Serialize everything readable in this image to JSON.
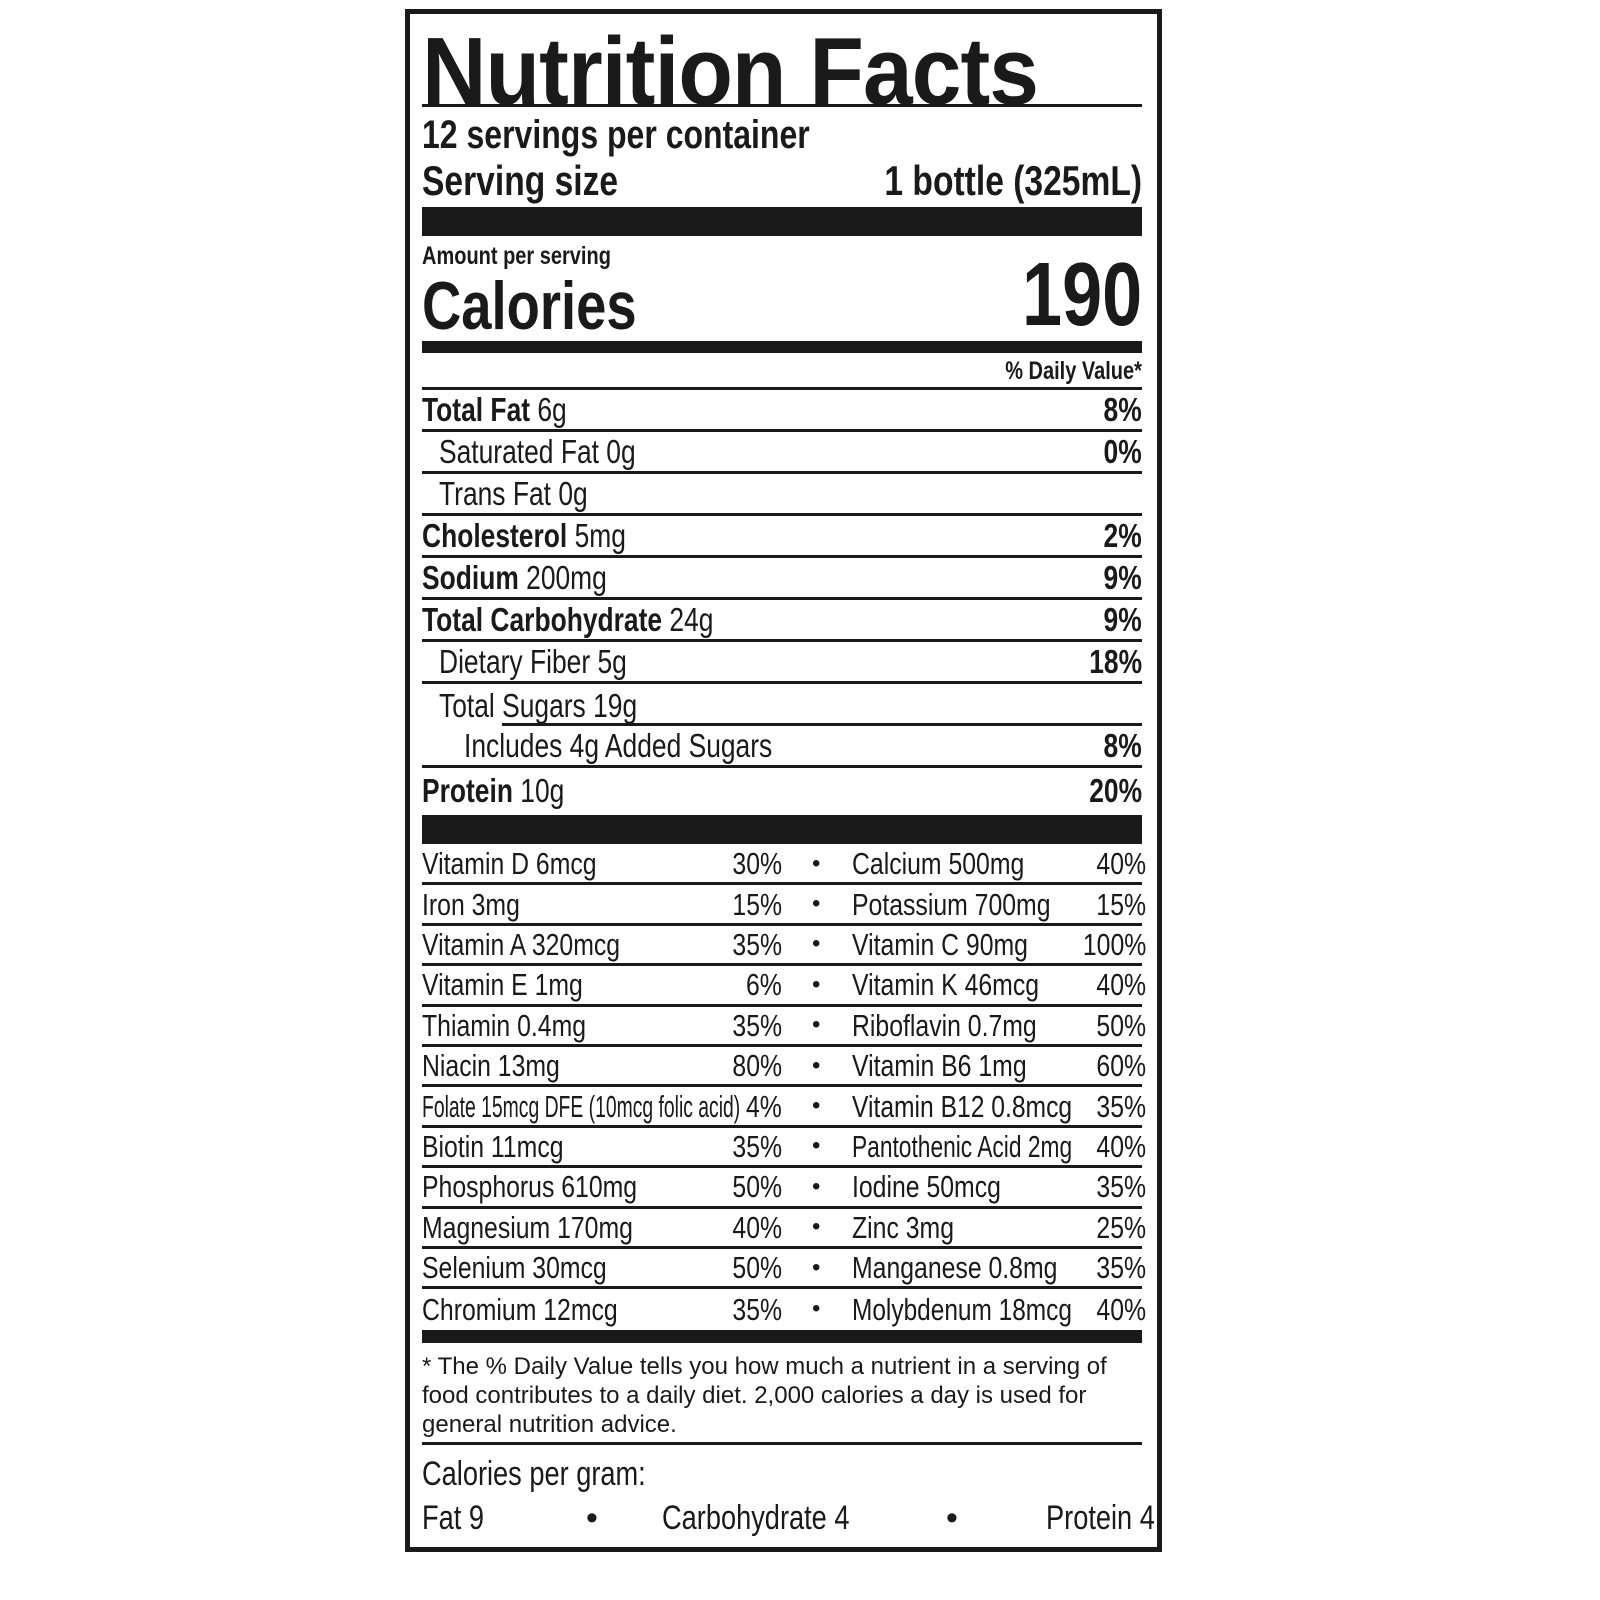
{
  "title": "Nutrition Facts",
  "servings_per_container": "12 servings per container",
  "serving_size_label": "Serving size",
  "serving_size_value": "1 bottle (325mL)",
  "amount_per_serving": "Amount per serving",
  "calories_label": "Calories",
  "calories_value": "190",
  "daily_value_header": "% Daily Value*",
  "nutrients": [
    {
      "name": "Total Fat",
      "amount": "6g",
      "dv": "8%",
      "bold": true,
      "indent": 0
    },
    {
      "name": "Saturated Fat",
      "amount": "0g",
      "dv": "0%",
      "bold": false,
      "indent": 1
    },
    {
      "name": "Trans Fat",
      "amount": "0g",
      "dv": "",
      "bold": false,
      "indent": 1
    },
    {
      "name": "Cholesterol",
      "amount": "5mg",
      "dv": "2%",
      "bold": true,
      "indent": 0
    },
    {
      "name": "Sodium",
      "amount": "200mg",
      "dv": "9%",
      "bold": true,
      "indent": 0
    },
    {
      "name": "Total Carbohydrate",
      "amount": "24g",
      "dv": "9%",
      "bold": true,
      "indent": 0
    },
    {
      "name": "Dietary Fiber",
      "amount": "5g",
      "dv": "18%",
      "bold": false,
      "indent": 1
    },
    {
      "name": "Total Sugars",
      "amount": "19g",
      "dv": "",
      "bold": false,
      "indent": 1
    },
    {
      "name": "Includes 4g Added Sugars",
      "amount": "",
      "dv": "8%",
      "bold": false,
      "indent": 2
    },
    {
      "name": "Protein",
      "amount": "10g",
      "dv": "20%",
      "bold": true,
      "indent": 0
    }
  ],
  "vitamins": [
    {
      "left": "Vitamin D 6mcg",
      "left_dv": "30%",
      "right": "Calcium 500mg",
      "right_dv": "40%"
    },
    {
      "left": "Iron 3mg",
      "left_dv": "15%",
      "right": "Potassium 700mg",
      "right_dv": "15%"
    },
    {
      "left": "Vitamin A 320mcg",
      "left_dv": "35%",
      "right": "Vitamin C 90mg",
      "right_dv": "100%"
    },
    {
      "left": "Vitamin E 1mg",
      "left_dv": "6%",
      "right": "Vitamin K 46mcg",
      "right_dv": "40%"
    },
    {
      "left": "Thiamin  0.4mg",
      "left_dv": "35%",
      "right": "Riboflavin 0.7mg",
      "right_dv": "50%"
    },
    {
      "left": "Niacin 13mg",
      "left_dv": "80%",
      "right": "Vitamin B6 1mg",
      "right_dv": "60%"
    },
    {
      "left": "Folate 15mcg DFE (10mcg folic acid)",
      "left_dv": "4%",
      "right": "Vitamin B12 0.8mcg",
      "right_dv": "35%"
    },
    {
      "left": "Biotin 11mcg",
      "left_dv": "35%",
      "right": "Pantothenic Acid  2mg",
      "right_dv": "40%"
    },
    {
      "left": "Phosphorus 610mg",
      "left_dv": "50%",
      "right": "Iodine 50mcg",
      "right_dv": "35%"
    },
    {
      "left": "Magnesium 170mg",
      "left_dv": "40%",
      "right": "Zinc 3mg",
      "right_dv": "25%"
    },
    {
      "left": "Selenium 30mcg",
      "left_dv": "50%",
      "right": "Manganese 0.8mg",
      "right_dv": "35%"
    },
    {
      "left": "Chromium 12mcg",
      "left_dv": "35%",
      "right": "Molybdenum 18mcg",
      "right_dv": "40%"
    }
  ],
  "separator_bullet": "•",
  "footnote": "* The % Daily Value tells you how much a nutrient in a serving of food contributes to a daily diet. 2,000 calories a day is used for general nutrition advice.",
  "calories_per_gram": {
    "label": "Calories per gram:",
    "fat": "Fat 9",
    "carbohydrate": "Carbohydrate 4",
    "protein": "Protein 4"
  }
}
